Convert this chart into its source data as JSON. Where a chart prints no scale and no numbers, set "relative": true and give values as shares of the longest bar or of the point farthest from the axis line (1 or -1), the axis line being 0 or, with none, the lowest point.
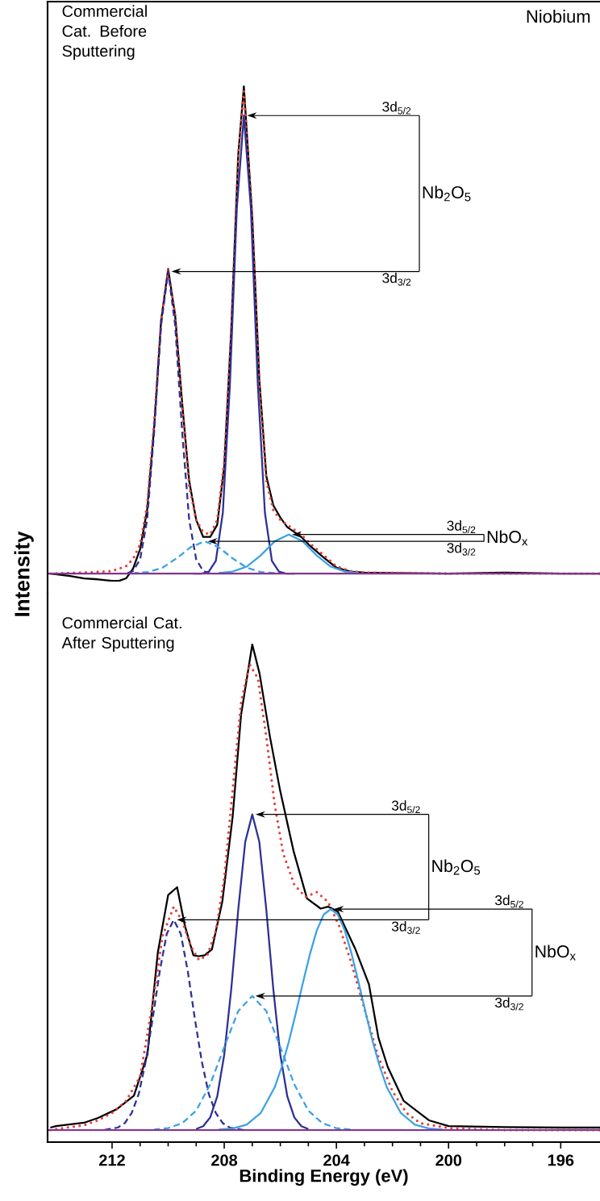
{
  "chart_data": [
    {
      "type": "line",
      "title": "Niobium",
      "subtitle": "Commercial Cat. Before Sputtering",
      "ylabel": "Intensity",
      "relative": true,
      "xlim": [
        214.3,
        194.6
      ],
      "tick_labels": false,
      "series": [
        {
          "color": "#000000",
          "line_style": "solid",
          "x": [
            214.2,
            213.5,
            213,
            212.5,
            212,
            211.75,
            211.5,
            211.25,
            211,
            210.75,
            210.5,
            210.25,
            210,
            209.75,
            209.5,
            209.25,
            209,
            208.75,
            208.5,
            208.25,
            208,
            207.75,
            207.5,
            207.3,
            207,
            206.75,
            206.5,
            206.25,
            206,
            205.75,
            205.5,
            205.25,
            205,
            204.5,
            204,
            203.5,
            203,
            202,
            200,
            198,
            196,
            194.6
          ],
          "values": [
            0,
            -0.005,
            -0.01,
            -0.012,
            -0.015,
            -0.015,
            -0.01,
            0.01,
            0.05,
            0.13,
            0.3,
            0.52,
            0.625,
            0.53,
            0.35,
            0.19,
            0.11,
            0.075,
            0.075,
            0.1,
            0.22,
            0.5,
            0.86,
            1.0,
            0.73,
            0.4,
            0.2,
            0.14,
            0.115,
            0.095,
            0.085,
            0.075,
            0.06,
            0.035,
            0.012,
            0.004,
            0.002,
            0.001,
            0,
            0.002,
            0,
            0
          ]
        },
        {
          "color": "#e2403a",
          "line_style": "dotted",
          "x": [
            214.2,
            213,
            212,
            211.5,
            211.25,
            211,
            210.75,
            210.5,
            210.25,
            210,
            209.75,
            209.5,
            209.25,
            209,
            208.75,
            208.5,
            208.25,
            208,
            207.75,
            207.5,
            207.3,
            207,
            206.75,
            206.5,
            206.25,
            206,
            205.75,
            205.5,
            205.25,
            205,
            204.5,
            204,
            203.5,
            203,
            200,
            194.6
          ],
          "values": [
            0,
            0.002,
            0.005,
            0.015,
            0.03,
            0.06,
            0.14,
            0.31,
            0.52,
            0.625,
            0.53,
            0.34,
            0.18,
            0.11,
            0.085,
            0.08,
            0.11,
            0.23,
            0.5,
            0.86,
            0.99,
            0.73,
            0.39,
            0.19,
            0.13,
            0.11,
            0.1,
            0.09,
            0.08,
            0.065,
            0.04,
            0.015,
            0.005,
            0.002,
            0,
            0
          ]
        },
        {
          "color": "#2e3192",
          "line_style": "solid",
          "x": [
            205.5,
            205.8,
            206.05,
            206.3,
            206.55,
            206.8,
            207.05,
            207.3,
            207.55,
            207.8,
            208.05,
            208.3,
            208.55,
            208.8,
            209.1
          ],
          "values": [
            0,
            0,
            0.004,
            0.026,
            0.125,
            0.385,
            0.75,
            0.94,
            0.75,
            0.385,
            0.125,
            0.026,
            0.004,
            0,
            0
          ]
        },
        {
          "color": "#2e3192",
          "line_style": "dashed",
          "x": [
            208.5,
            208.75,
            209,
            209.25,
            209.5,
            209.75,
            210,
            210.25,
            210.5,
            210.75,
            211,
            211.25,
            211.5
          ],
          "values": [
            0,
            0.005,
            0.029,
            0.11,
            0.29,
            0.51,
            0.62,
            0.51,
            0.29,
            0.11,
            0.029,
            0.005,
            0
          ]
        },
        {
          "color": "#3ca2e4",
          "line_style": "solid",
          "x": [
            203.2,
            203.7,
            204.2,
            204.7,
            205.2,
            205.7,
            206.2,
            206.7,
            207.2,
            207.7,
            208.2
          ],
          "values": [
            0.001,
            0.004,
            0.014,
            0.037,
            0.066,
            0.08,
            0.066,
            0.037,
            0.014,
            0.004,
            0.001
          ]
        },
        {
          "color": "#3ca2e4",
          "line_style": "dashed",
          "x": [
            206.2,
            206.7,
            207.2,
            207.7,
            208.2,
            208.7,
            209.2,
            209.7,
            210.2,
            210.7,
            211.2
          ],
          "values": [
            0.001,
            0.003,
            0.012,
            0.031,
            0.054,
            0.066,
            0.054,
            0.031,
            0.012,
            0.003,
            0.001
          ]
        },
        {
          "color": "#83358f",
          "line_style": "solid",
          "x": [
            214.3,
            194.6
          ],
          "values": [
            0,
            0
          ]
        }
      ],
      "annotations": [
        "3d$_{5/2}$",
        "3d$_{3/2}$",
        "Nb$_{2}$O$_{5}$",
        "3d$_{5/2}$",
        "3d$_{3/2}$",
        "NbO$_{x}$"
      ]
    },
    {
      "type": "line",
      "subtitle": "Commercial Cat. After Sputtering",
      "xlabel": "Binding Energy (eV)",
      "relative": true,
      "xlim": [
        214.3,
        194.6
      ],
      "xticks": [
        212,
        208,
        204,
        200,
        196
      ],
      "tick_labels": "x",
      "series": [
        {
          "color": "#000000",
          "line_style": "solid",
          "x": [
            214.2,
            214.0,
            213.0,
            212.5,
            211.83,
            211.22,
            210.74,
            210.37,
            210.0,
            209.68,
            209.4,
            209.1,
            208.92,
            208.7,
            208.44,
            208.07,
            207.7,
            207.4,
            207.0,
            206.74,
            206.37,
            206.01,
            205.53,
            205.05,
            204.56,
            204.3,
            203.95,
            203.32,
            202.84,
            202.5,
            202.17,
            201.6,
            200.7,
            200,
            198,
            196,
            194.6
          ],
          "values": [
            0.005,
            0.008,
            0.015,
            0.025,
            0.043,
            0.071,
            0.155,
            0.365,
            0.484,
            0.5,
            0.42,
            0.36,
            0.358,
            0.36,
            0.372,
            0.47,
            0.645,
            0.855,
            1.0,
            0.94,
            0.81,
            0.7,
            0.575,
            0.477,
            0.456,
            0.46,
            0.45,
            0.372,
            0.3,
            0.19,
            0.13,
            0.06,
            0.02,
            0.008,
            0.006,
            0.005,
            0.005
          ]
        },
        {
          "color": "#e2403a",
          "line_style": "dotted",
          "x": [
            214.2,
            213,
            212.5,
            212,
            211.5,
            211,
            210.5,
            210.2,
            209.8,
            209.5,
            209.2,
            208.9,
            208.6,
            208.3,
            208,
            207.7,
            207.4,
            207.1,
            206.8,
            206.5,
            206.2,
            205.9,
            205.5,
            205.1,
            204.7,
            204.3,
            203.9,
            203.5,
            203,
            202.5,
            202,
            201.5,
            201,
            200,
            198,
            194.6
          ],
          "values": [
            0,
            0.01,
            0.02,
            0.035,
            0.06,
            0.11,
            0.28,
            0.4,
            0.46,
            0.43,
            0.38,
            0.35,
            0.36,
            0.41,
            0.52,
            0.7,
            0.88,
            0.96,
            0.93,
            0.81,
            0.67,
            0.57,
            0.505,
            0.48,
            0.49,
            0.47,
            0.42,
            0.35,
            0.25,
            0.15,
            0.08,
            0.035,
            0.014,
            0.004,
            0,
            0
          ]
        },
        {
          "color": "#2e3192",
          "line_style": "solid",
          "x": [
            205,
            205.25,
            205.5,
            205.75,
            206,
            206.25,
            206.5,
            206.75,
            207,
            207.25,
            207.5,
            207.75,
            208,
            208.25,
            208.5,
            208.75,
            209
          ],
          "values": [
            0.002,
            0.008,
            0.026,
            0.069,
            0.155,
            0.29,
            0.454,
            0.594,
            0.65,
            0.594,
            0.454,
            0.29,
            0.155,
            0.069,
            0.026,
            0.008,
            0.002
          ]
        },
        {
          "color": "#2e3192",
          "line_style": "dashed",
          "x": [
            207.3,
            207.8,
            208.05,
            208.3,
            208.55,
            208.8,
            209.05,
            209.3,
            209.55,
            209.8,
            210.05,
            210.3,
            210.55,
            210.8,
            211.05,
            211.3,
            211.55,
            211.8,
            212.3
          ],
          "values": [
            0,
            0.005,
            0.014,
            0.035,
            0.074,
            0.141,
            0.23,
            0.327,
            0.404,
            0.433,
            0.404,
            0.327,
            0.23,
            0.141,
            0.074,
            0.035,
            0.014,
            0.005,
            0
          ]
        },
        {
          "color": "#3ca2e4",
          "line_style": "solid",
          "x": [
            200.2,
            200.7,
            201.2,
            201.7,
            202.2,
            202.45,
            202.7,
            202.95,
            203.2,
            203.45,
            203.7,
            203.95,
            204.2,
            204.45,
            204.7,
            204.95,
            205.2,
            205.45,
            205.7,
            205.95,
            206.2,
            206.7,
            207.2,
            207.7,
            208.2
          ],
          "values": [
            0.001,
            0.003,
            0.011,
            0.035,
            0.088,
            0.13,
            0.181,
            0.24,
            0.302,
            0.361,
            0.411,
            0.444,
            0.455,
            0.444,
            0.411,
            0.361,
            0.302,
            0.24,
            0.181,
            0.13,
            0.088,
            0.035,
            0.011,
            0.003,
            0.001
          ]
        },
        {
          "color": "#3ca2e4",
          "line_style": "dashed",
          "x": [
            203.5,
            204,
            204.5,
            205,
            205.5,
            206,
            206.5,
            207,
            207.5,
            208,
            208.5,
            209,
            209.5,
            210,
            210.5
          ],
          "values": [
            0.001,
            0.004,
            0.014,
            0.04,
            0.094,
            0.171,
            0.245,
            0.276,
            0.245,
            0.171,
            0.094,
            0.04,
            0.014,
            0.004,
            0.001
          ]
        },
        {
          "color": "#83358f",
          "line_style": "solid",
          "x": [
            214.3,
            194.6
          ],
          "values": [
            0,
            0
          ]
        }
      ],
      "annotations": [
        "3d$_{5/2}$",
        "3d$_{3/2}$",
        "Nb$_{2}$O$_{5}$",
        "3d$_{5/2}$",
        "3d$_{3/2}$",
        "NbO$_{x}$"
      ]
    }
  ]
}
